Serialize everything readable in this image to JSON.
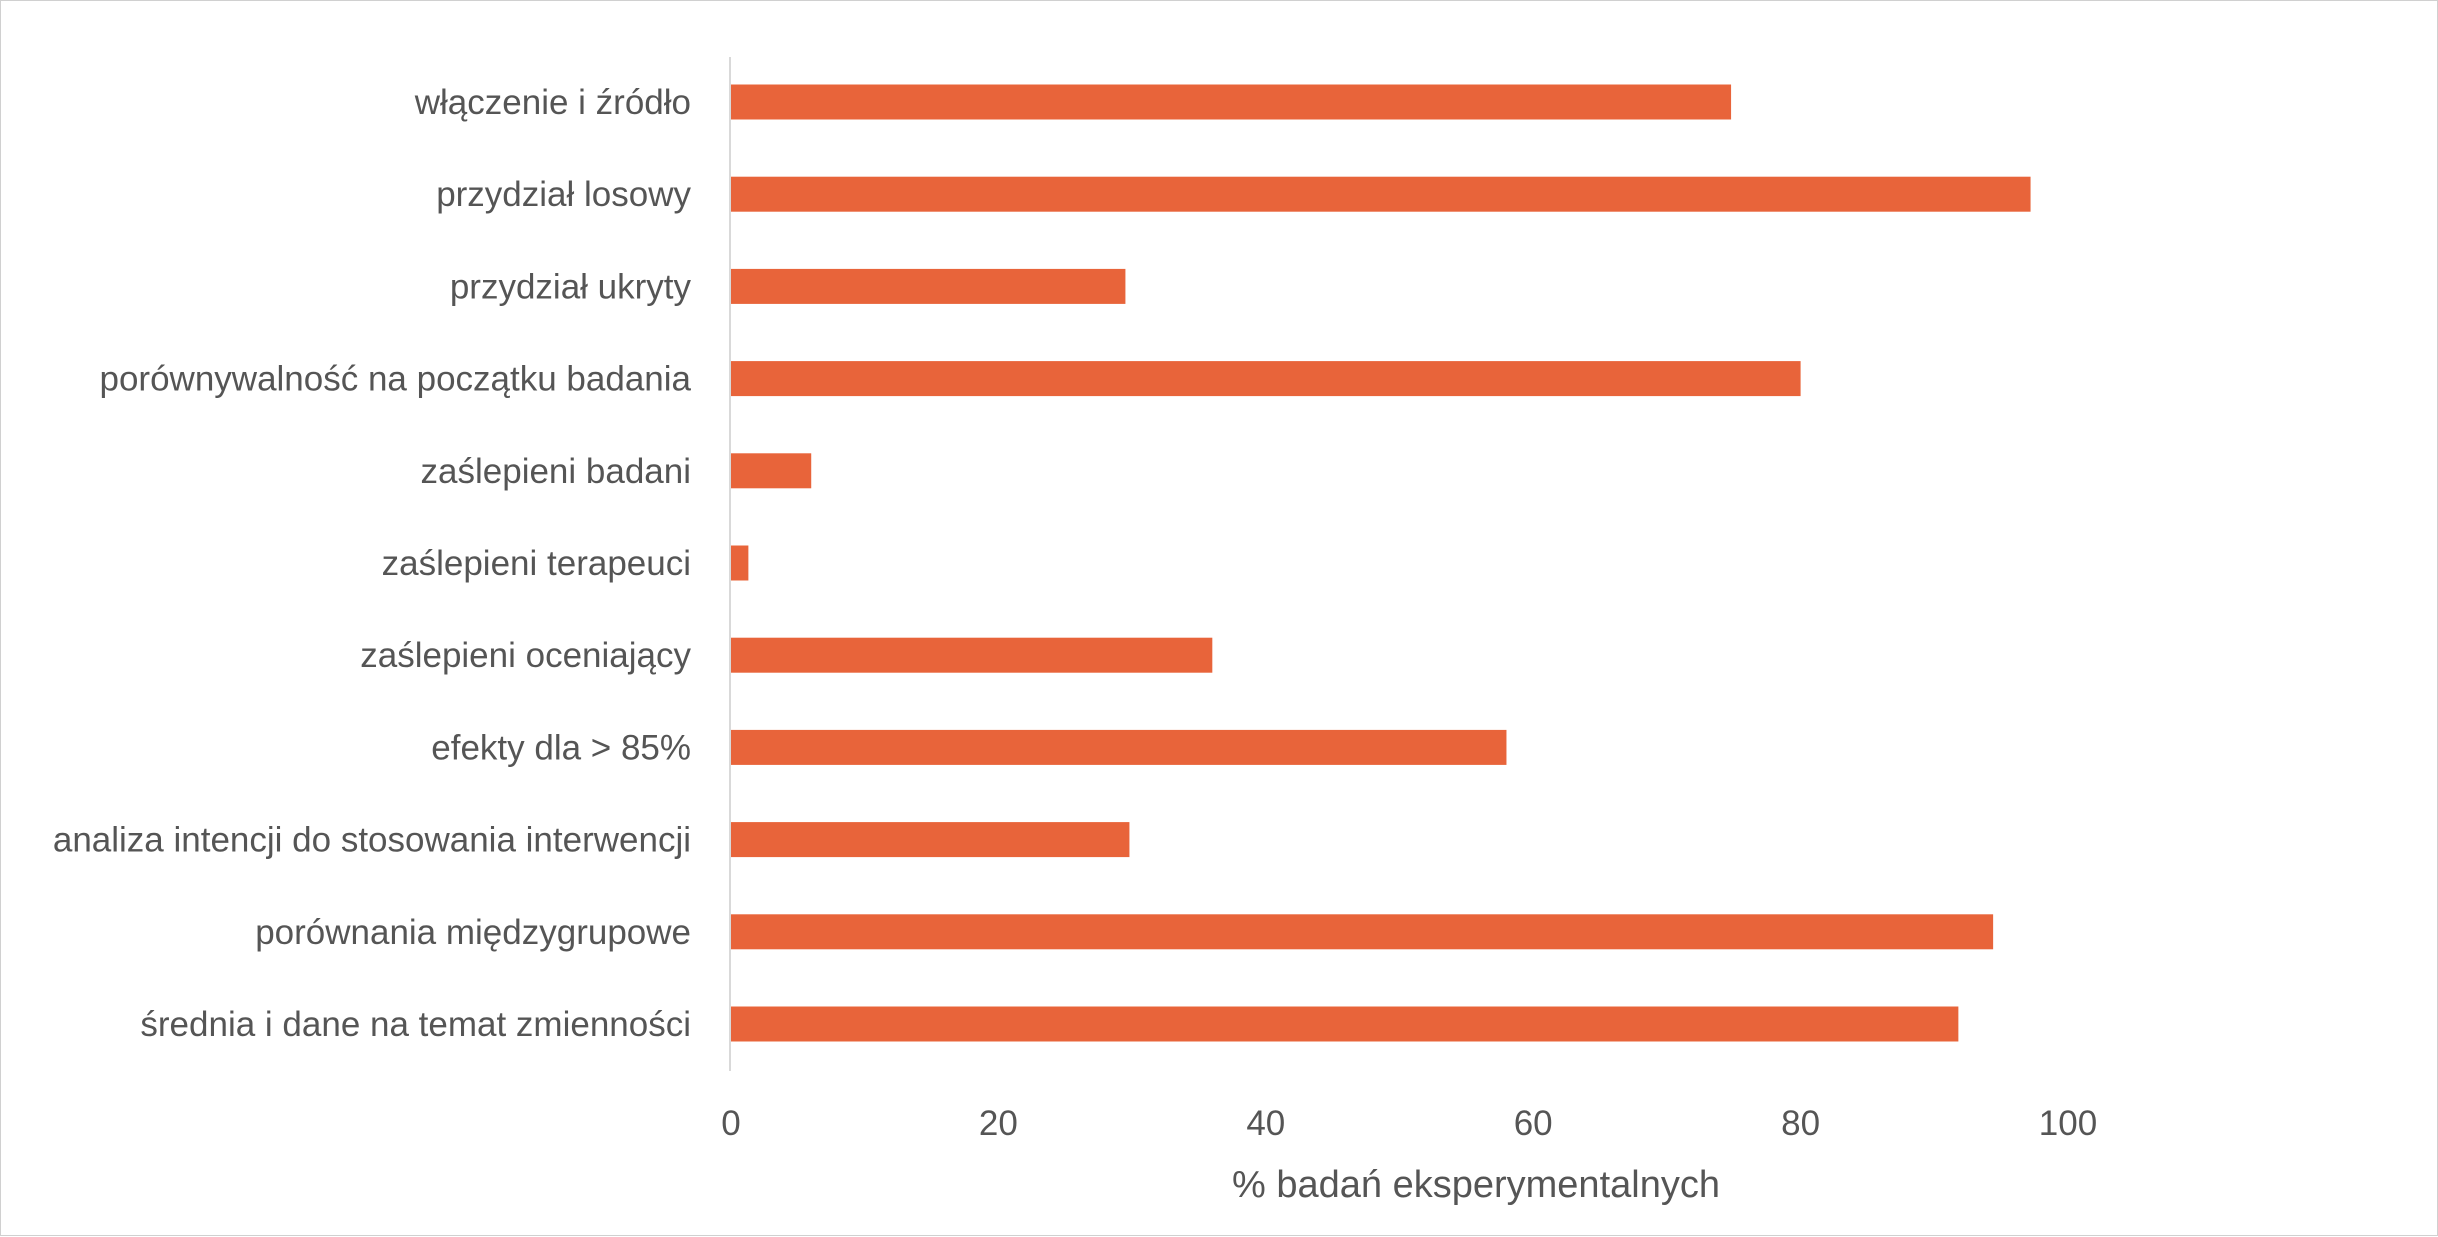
{
  "chart_data": {
    "type": "bar",
    "orientation": "horizontal",
    "categories": [
      "włączenie i źródło",
      "przydział losowy",
      "przydział ukryty",
      "porównywalność na początku badania",
      "zaślepieni badani",
      "zaślepieni terapeuci",
      "zaślepieni oceniający",
      "efekty dla > 85%",
      "analiza intencji do stosowania interwencji",
      "porównania międzygrupowe",
      "średnia i dane na temat zmienności"
    ],
    "values": [
      74.8,
      97.2,
      29.5,
      80,
      6,
      1.3,
      36,
      58,
      29.8,
      94.4,
      91.8
    ],
    "title": "",
    "xlabel": "% badań eksperymentalnych",
    "ylabel": "",
    "xlim": [
      0,
      120
    ],
    "xticks": [
      0,
      20,
      40,
      60,
      80,
      100
    ],
    "grid": false,
    "bar_color": "#E8643A",
    "axis_color": "#d9d9d9",
    "text_color": "#555555"
  }
}
